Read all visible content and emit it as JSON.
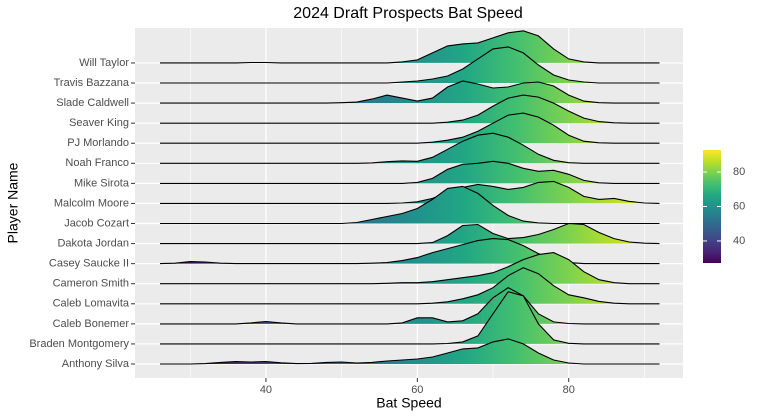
{
  "chart_data": {
    "type": "ridgeline",
    "title": "2024 Draft Prospects Bat Speed",
    "x_label": "Bat Speed",
    "y_label": "Player Name",
    "x": [
      26,
      28,
      30,
      32,
      34,
      36,
      38,
      40,
      42,
      44,
      46,
      48,
      50,
      52,
      54,
      56,
      58,
      60,
      62,
      64,
      66,
      68,
      70,
      72,
      74,
      76,
      78,
      80,
      82,
      84,
      86,
      88,
      90,
      92
    ],
    "xlim": [
      22.7,
      95.1
    ],
    "xticks": [
      40,
      60,
      80
    ],
    "minor_xticks": [
      30,
      50,
      70,
      90
    ],
    "grid": true,
    "colormap": "viridis",
    "fill_lim": [
      27.2,
      92.8
    ],
    "fill_ticks": [
      40,
      60,
      80
    ],
    "series": [
      {
        "name": "Anthony Silva",
        "values": [
          0,
          0,
          0,
          0.02,
          0.08,
          0.12,
          0.1,
          0.12,
          0.06,
          0.02,
          0.03,
          0.08,
          0.1,
          0.05,
          0.08,
          0.15,
          0.2,
          0.25,
          0.35,
          0.55,
          0.75,
          0.8,
          1.1,
          1.25,
          1.0,
          0.55,
          0.2,
          0.05,
          0,
          0,
          0,
          0,
          0,
          0
        ]
      },
      {
        "name": "Braden Montgomery",
        "values": [
          0,
          0,
          0,
          0,
          0,
          0,
          0,
          0,
          0,
          0,
          0,
          0,
          0,
          0,
          0,
          0,
          0,
          0,
          0,
          0.02,
          0.1,
          0.4,
          1.5,
          2.6,
          2.4,
          1.0,
          0.2,
          0.03,
          0,
          0,
          0,
          0,
          0,
          0
        ]
      },
      {
        "name": "Caleb Bonemer",
        "values": [
          0,
          0,
          0,
          0,
          0,
          0,
          0.05,
          0.12,
          0.05,
          0,
          0,
          0,
          0,
          0,
          0,
          0,
          0.05,
          0.3,
          0.3,
          0.1,
          0.15,
          0.5,
          1.3,
          1.8,
          1.4,
          0.5,
          0.1,
          0.02,
          0,
          0,
          0,
          0,
          0,
          0
        ]
      },
      {
        "name": "Caleb Lomavita",
        "values": [
          0,
          0,
          0,
          0,
          0,
          0,
          0,
          0,
          0,
          0,
          0,
          0,
          0,
          0,
          0,
          0,
          0,
          0,
          0.03,
          0.1,
          0.25,
          0.45,
          0.8,
          1.4,
          1.8,
          1.5,
          0.9,
          0.45,
          0.3,
          0.12,
          0.03,
          0,
          0,
          0
        ]
      },
      {
        "name": "Cameron Smith",
        "values": [
          0,
          0,
          0,
          0,
          0,
          0,
          0,
          0,
          0,
          0,
          0,
          0,
          0,
          0,
          0,
          0.02,
          0.05,
          0.05,
          0.1,
          0.2,
          0.3,
          0.4,
          0.55,
          0.85,
          1.2,
          1.45,
          1.55,
          1.2,
          0.6,
          0.2,
          0.05,
          0,
          0,
          0
        ]
      },
      {
        "name": "Casey Saucke II",
        "values": [
          0,
          0.02,
          0.1,
          0.08,
          0.02,
          0,
          0,
          0,
          0,
          0,
          0,
          0,
          0,
          0,
          0.02,
          0.05,
          0.15,
          0.3,
          0.55,
          0.75,
          0.95,
          1.15,
          1.25,
          1.2,
          0.9,
          0.5,
          0.2,
          0.05,
          0,
          0,
          0,
          0,
          0,
          0
        ]
      },
      {
        "name": "Dakota Jordan",
        "values": [
          0,
          0,
          0,
          0,
          0,
          0,
          0,
          0,
          0,
          0,
          0,
          0,
          0,
          0,
          0,
          0,
          0,
          0,
          0.05,
          0.4,
          0.9,
          0.95,
          0.5,
          0.25,
          0.3,
          0.45,
          0.7,
          1.0,
          0.95,
          0.55,
          0.25,
          0.08,
          0.02,
          0
        ]
      },
      {
        "name": "Jacob Cozart",
        "values": [
          0,
          0,
          0,
          0,
          0,
          0,
          0,
          0,
          0,
          0,
          0,
          0,
          0,
          0.05,
          0.2,
          0.35,
          0.5,
          0.75,
          1.2,
          1.75,
          1.85,
          1.5,
          0.9,
          0.4,
          0.12,
          0.03,
          0,
          0,
          0,
          0,
          0,
          0,
          0,
          0
        ]
      },
      {
        "name": "Malcolm Moore",
        "values": [
          0,
          0,
          0,
          0,
          0,
          0,
          0,
          0,
          0,
          0,
          0,
          0,
          0,
          0,
          0,
          0,
          0.02,
          0.08,
          0.25,
          0.55,
          0.8,
          0.95,
          0.85,
          0.7,
          0.8,
          1.05,
          1.1,
          0.8,
          0.35,
          0.2,
          0.25,
          0.1,
          0.02,
          0
        ]
      },
      {
        "name": "Mike Sirota",
        "values": [
          0,
          0,
          0,
          0,
          0,
          0,
          0,
          0,
          0,
          0,
          0,
          0,
          0,
          0,
          0,
          0,
          0,
          0.05,
          0.25,
          0.7,
          0.95,
          1.0,
          1.1,
          1.0,
          0.75,
          0.6,
          0.65,
          0.45,
          0.15,
          0.03,
          0,
          0,
          0,
          0
        ]
      },
      {
        "name": "Noah Franco",
        "values": [
          0,
          0,
          0,
          0,
          0,
          0,
          0,
          0,
          0,
          0,
          0,
          0,
          0,
          0,
          0.02,
          0.08,
          0.12,
          0.1,
          0.3,
          0.7,
          1.1,
          1.4,
          1.5,
          1.3,
          0.9,
          0.45,
          0.15,
          0.03,
          0,
          0,
          0,
          0,
          0,
          0
        ]
      },
      {
        "name": "PJ Morlando",
        "values": [
          0,
          0,
          0,
          0,
          0,
          0,
          0,
          0,
          0,
          0,
          0,
          0,
          0,
          0,
          0,
          0,
          0,
          0,
          0.05,
          0.15,
          0.3,
          0.6,
          1.0,
          1.4,
          1.5,
          1.3,
          0.9,
          0.4,
          0.1,
          0.02,
          0,
          0,
          0,
          0
        ]
      },
      {
        "name": "Seaver King",
        "values": [
          0,
          0,
          0,
          0,
          0,
          0,
          0,
          0,
          0,
          0,
          0,
          0,
          0,
          0,
          0,
          0,
          0,
          0,
          0,
          0.05,
          0.15,
          0.4,
          0.85,
          1.25,
          1.4,
          1.3,
          1.0,
          0.6,
          0.25,
          0.08,
          0.02,
          0,
          0,
          0
        ]
      },
      {
        "name": "Slade Caldwell",
        "values": [
          0,
          0,
          0,
          0,
          0,
          0,
          0,
          0,
          0,
          0,
          0,
          0,
          0.02,
          0.05,
          0.2,
          0.4,
          0.25,
          0.1,
          0.25,
          0.8,
          1.1,
          0.95,
          0.75,
          0.8,
          1.0,
          1.05,
          0.85,
          0.4,
          0.1,
          0.02,
          0,
          0,
          0,
          0
        ]
      },
      {
        "name": "Travis Bazzana",
        "values": [
          0,
          0,
          0,
          0,
          0,
          0,
          0,
          0,
          0,
          0,
          0,
          0,
          0,
          0,
          0,
          0,
          0.05,
          0.1,
          0.2,
          0.35,
          0.7,
          1.2,
          1.7,
          1.8,
          1.5,
          0.9,
          0.4,
          0.15,
          0.05,
          0,
          0,
          0,
          0,
          0
        ]
      },
      {
        "name": "Will Taylor",
        "values": [
          0,
          0,
          0,
          0,
          0,
          0,
          0.02,
          0.02,
          0,
          0,
          0,
          0,
          0,
          0,
          0,
          0,
          0.05,
          0.15,
          0.5,
          0.85,
          0.95,
          1.0,
          1.25,
          1.5,
          1.6,
          1.35,
          0.7,
          0.2,
          0.05,
          0,
          0,
          0,
          0,
          0
        ]
      }
    ]
  }
}
